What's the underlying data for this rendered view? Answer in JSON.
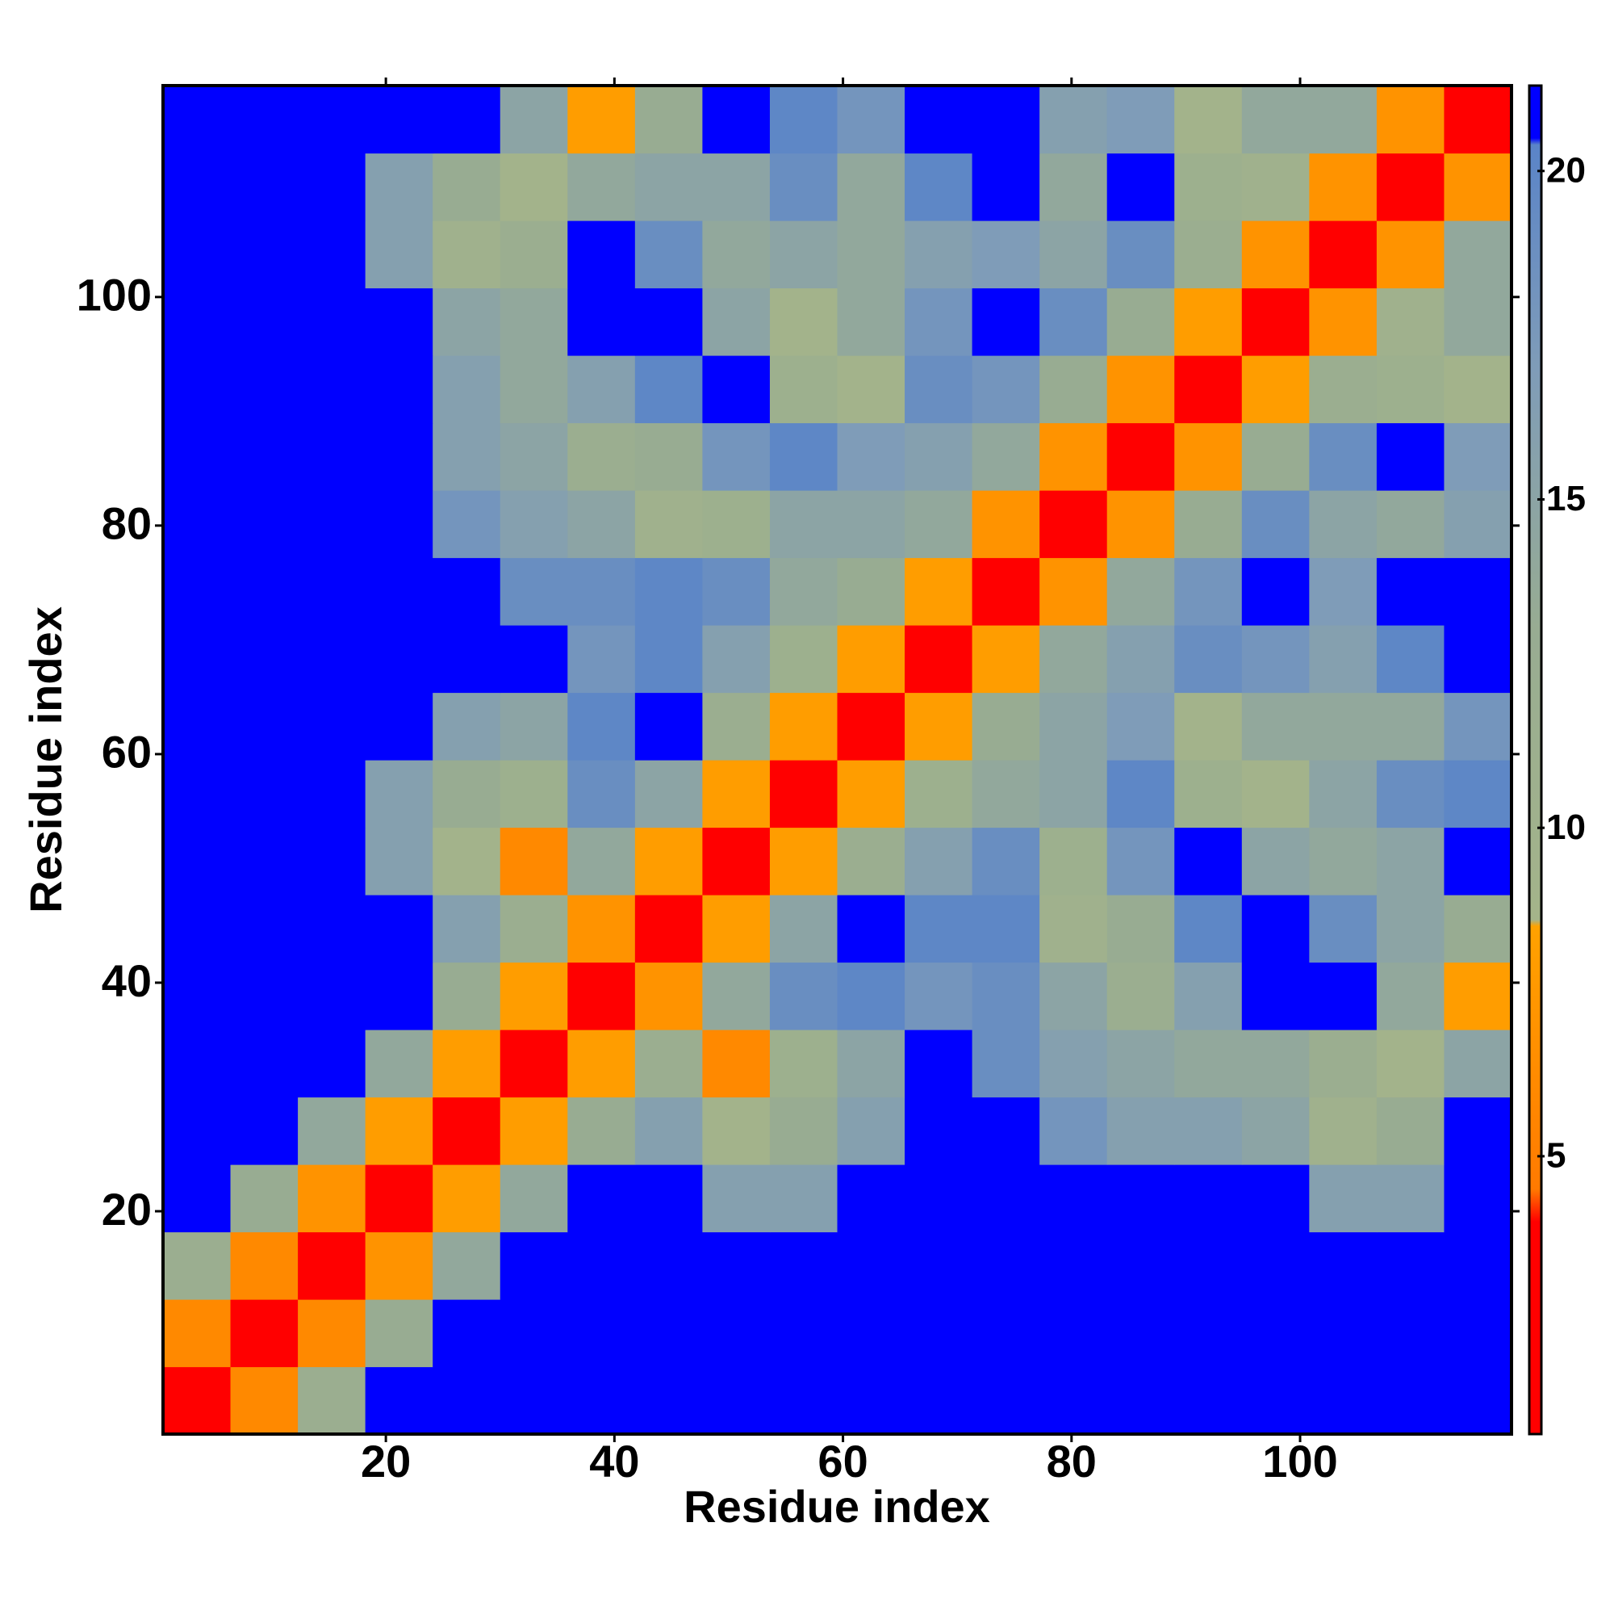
{
  "chart_data": {
    "type": "heatmap",
    "x_label": "Residue index",
    "y_label": "Residue index",
    "xlim": [
      0.5,
      118.5
    ],
    "ylim": [
      0.5,
      118.5
    ],
    "xticks": [
      20,
      40,
      60,
      80,
      100
    ],
    "yticks": [
      20,
      40,
      60,
      80,
      100
    ],
    "x_edges": [
      0.5,
      6.4,
      12.3,
      18.2,
      24.1,
      30,
      35.9,
      41.8,
      47.7,
      53.6,
      59.5,
      65.4,
      71.3,
      77.2,
      83.1,
      89,
      94.9,
      100.8,
      106.7,
      112.6,
      118.5
    ],
    "y_edges": [
      0.5,
      6.4,
      12.3,
      18.2,
      24.1,
      30,
      35.9,
      41.8,
      47.7,
      53.6,
      59.5,
      65.4,
      71.3,
      77.2,
      83.1,
      89,
      94.9,
      100.8,
      106.7,
      112.6,
      118.5
    ],
    "z": [
      [
        2,
        6,
        12,
        21,
        21,
        21,
        21,
        21,
        21,
        21,
        21,
        21,
        21,
        21,
        21,
        21,
        21,
        21,
        21,
        21
      ],
      [
        6,
        2,
        6,
        13,
        21,
        21,
        21,
        21,
        21,
        21,
        21,
        21,
        21,
        21,
        21,
        21,
        21,
        21,
        21,
        21
      ],
      [
        12,
        6,
        2,
        7,
        14,
        21,
        21,
        21,
        21,
        21,
        21,
        21,
        21,
        21,
        21,
        21,
        21,
        21,
        21,
        21
      ],
      [
        21,
        13,
        7,
        2,
        8,
        14,
        21,
        21,
        16,
        16,
        21,
        21,
        21,
        21,
        21,
        21,
        21,
        16,
        16,
        21
      ],
      [
        21,
        21,
        14,
        8,
        2,
        8,
        13,
        16,
        9,
        13,
        16,
        21,
        21,
        18,
        16,
        16,
        15,
        10,
        13,
        21
      ],
      [
        21,
        21,
        21,
        14,
        8,
        2,
        8,
        12,
        6,
        11,
        15,
        21,
        19,
        16,
        15,
        14,
        14,
        12,
        9,
        15
      ],
      [
        21,
        21,
        21,
        21,
        13,
        8,
        2,
        7,
        14,
        19,
        20,
        18,
        19,
        15,
        12,
        16,
        21,
        21,
        14,
        8
      ],
      [
        21,
        21,
        21,
        21,
        16,
        12,
        7,
        2,
        8,
        15,
        21,
        20,
        20,
        10,
        13,
        20,
        21,
        19,
        15,
        13
      ],
      [
        21,
        21,
        21,
        16,
        9,
        6,
        14,
        8,
        2,
        8,
        12,
        16,
        19,
        11,
        18,
        21,
        15,
        14,
        15,
        21
      ],
      [
        21,
        21,
        21,
        16,
        13,
        11,
        19,
        15,
        8,
        2,
        8,
        11,
        14,
        15,
        20,
        11,
        9,
        15,
        19,
        20
      ],
      [
        21,
        21,
        21,
        21,
        16,
        15,
        20,
        21,
        12,
        8,
        2,
        8,
        13,
        15,
        17,
        9,
        14,
        14,
        14,
        18
      ],
      [
        21,
        21,
        21,
        21,
        21,
        21,
        18,
        20,
        16,
        11,
        8,
        2,
        8,
        14,
        16,
        19,
        18,
        16,
        20,
        21
      ],
      [
        21,
        21,
        21,
        21,
        21,
        19,
        19,
        20,
        19,
        14,
        13,
        8,
        2,
        7,
        14,
        18,
        21,
        17,
        21,
        21
      ],
      [
        21,
        21,
        21,
        21,
        18,
        16,
        15,
        10,
        11,
        15,
        15,
        14,
        7,
        2,
        7,
        13,
        19,
        15,
        14,
        16
      ],
      [
        21,
        21,
        21,
        21,
        16,
        15,
        12,
        13,
        18,
        20,
        17,
        16,
        14,
        7,
        2,
        7,
        13,
        19,
        21,
        17
      ],
      [
        21,
        21,
        21,
        21,
        16,
        14,
        16,
        20,
        21,
        11,
        9,
        19,
        18,
        13,
        7,
        2,
        8,
        12,
        11,
        9
      ],
      [
        21,
        21,
        21,
        21,
        15,
        14,
        21,
        21,
        15,
        9,
        14,
        18,
        21,
        19,
        13,
        8,
        2,
        7,
        10,
        14
      ],
      [
        21,
        21,
        21,
        16,
        10,
        12,
        21,
        19,
        14,
        15,
        14,
        16,
        17,
        15,
        19,
        12,
        7,
        2,
        7,
        14
      ],
      [
        21,
        21,
        21,
        16,
        13,
        9,
        14,
        15,
        15,
        19,
        14,
        20,
        21,
        14,
        21,
        11,
        10,
        7,
        2,
        7
      ],
      [
        21,
        21,
        21,
        21,
        21,
        15,
        8,
        13,
        21,
        20,
        18,
        21,
        21,
        16,
        17,
        9,
        14,
        14,
        7,
        2
      ]
    ],
    "colorbar": {
      "lim": [
        0.77,
        21.3
      ],
      "ticks": [
        5,
        10,
        15,
        20
      ],
      "stops": [
        {
          "value": 0.77,
          "color": "#ff0000"
        },
        {
          "value": 4,
          "color": "#ff0000"
        },
        {
          "value": 4.5,
          "color": "#ff7a00"
        },
        {
          "value": 8.5,
          "color": "#ffa200"
        },
        {
          "value": 8.6,
          "color": "#a4b48a"
        },
        {
          "value": 13,
          "color": "#98ac92"
        },
        {
          "value": 17,
          "color": "#7f9cb8"
        },
        {
          "value": 20.4,
          "color": "#5a84c8"
        },
        {
          "value": 20.5,
          "color": "#0000ff"
        },
        {
          "value": 21.3,
          "color": "#0000ff"
        }
      ]
    }
  }
}
